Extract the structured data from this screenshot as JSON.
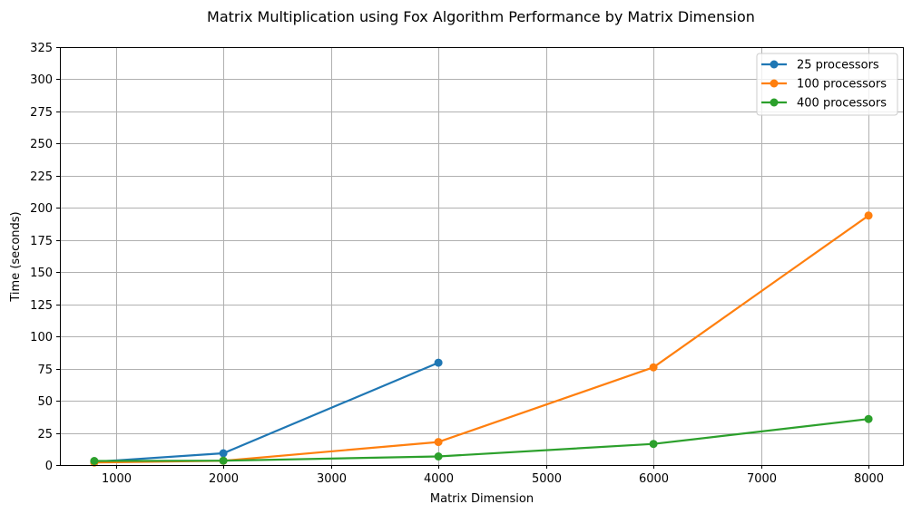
{
  "chart_data": {
    "type": "line",
    "title": "Matrix Multiplication using Fox Algorithm Performance by Matrix Dimension",
    "xlabel": "Matrix Dimension",
    "ylabel": "Time (seconds)",
    "xlim": [
      480,
      8320
    ],
    "ylim": [
      0,
      325
    ],
    "xticks": [
      1000,
      2000,
      3000,
      4000,
      5000,
      6000,
      7000,
      8000
    ],
    "yticks": [
      0,
      25,
      50,
      75,
      100,
      125,
      150,
      175,
      200,
      225,
      250,
      275,
      300,
      325
    ],
    "grid": true,
    "legend_position": "top-right",
    "series": [
      {
        "name": "25 processors",
        "color": "#1f77b4",
        "x": [
          800,
          2000,
          4000
        ],
        "y": [
          2.5,
          9.2,
          79.6
        ]
      },
      {
        "name": "100 processors",
        "color": "#ff7f0e",
        "x": [
          800,
          2000,
          4000,
          6000,
          8000
        ],
        "y": [
          2.0,
          3.3,
          17.9,
          76.0,
          194.0
        ]
      },
      {
        "name": "400 processors",
        "color": "#2ca02c",
        "x": [
          800,
          2000,
          4000,
          6000,
          8000
        ],
        "y": [
          3.2,
          3.4,
          6.7,
          16.4,
          35.8
        ]
      }
    ]
  }
}
